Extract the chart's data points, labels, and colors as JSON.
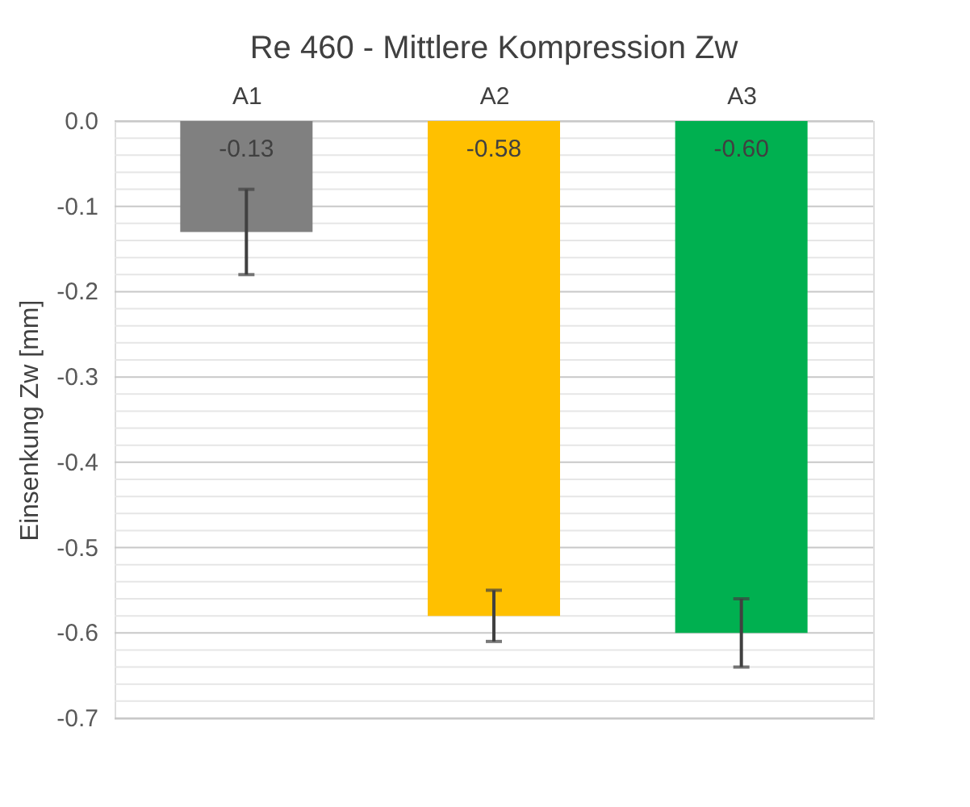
{
  "chart_data": {
    "type": "bar",
    "title": "Re 460 - Mittlere Kompression Zw",
    "ylabel": "Einsenkung Zw [mm]",
    "categories": [
      "A1",
      "A2",
      "A3"
    ],
    "values": [
      -0.13,
      -0.58,
      -0.6
    ],
    "colors": [
      "#808080",
      "#ffc000",
      "#00b050"
    ],
    "value_labels": [
      "-0.13",
      "-0.58",
      "-0.60"
    ],
    "errors": [
      [
        -0.18,
        -0.08
      ],
      [
        -0.61,
        -0.55
      ],
      [
        -0.64,
        -0.56
      ]
    ],
    "ylim": [
      -0.7,
      0
    ],
    "yticks": [
      {
        "value": 0,
        "label": "0.0"
      },
      {
        "value": -0.02,
        "label": null
      },
      {
        "value": -0.04,
        "label": null
      },
      {
        "value": -0.06,
        "label": null
      },
      {
        "value": -0.08,
        "label": null
      },
      {
        "value": -0.1,
        "label": "-0.1"
      },
      {
        "value": -0.12,
        "label": null
      },
      {
        "value": -0.14,
        "label": null
      },
      {
        "value": -0.16,
        "label": null
      },
      {
        "value": -0.18,
        "label": null
      },
      {
        "value": -0.2,
        "label": "-0.2"
      },
      {
        "value": -0.22,
        "label": null
      },
      {
        "value": -0.24,
        "label": null
      },
      {
        "value": -0.26,
        "label": null
      },
      {
        "value": -0.28,
        "label": null
      },
      {
        "value": -0.3,
        "label": "-0.3"
      },
      {
        "value": -0.32,
        "label": null
      },
      {
        "value": -0.34,
        "label": null
      },
      {
        "value": -0.36,
        "label": null
      },
      {
        "value": -0.38,
        "label": null
      },
      {
        "value": -0.4,
        "label": "-0.4"
      },
      {
        "value": -0.42,
        "label": null
      },
      {
        "value": -0.44,
        "label": null
      },
      {
        "value": -0.46,
        "label": null
      },
      {
        "value": -0.48,
        "label": null
      },
      {
        "value": -0.5,
        "label": "-0.5"
      },
      {
        "value": -0.52,
        "label": null
      },
      {
        "value": -0.54,
        "label": null
      },
      {
        "value": -0.56,
        "label": null
      },
      {
        "value": -0.58,
        "label": null
      },
      {
        "value": -0.6,
        "label": "-0.6"
      },
      {
        "value": -0.62,
        "label": null
      },
      {
        "value": -0.64,
        "label": null
      },
      {
        "value": -0.66,
        "label": null
      },
      {
        "value": -0.68,
        "label": null
      },
      {
        "value": -0.7,
        "label": "-0.7"
      }
    ],
    "grid": true
  }
}
